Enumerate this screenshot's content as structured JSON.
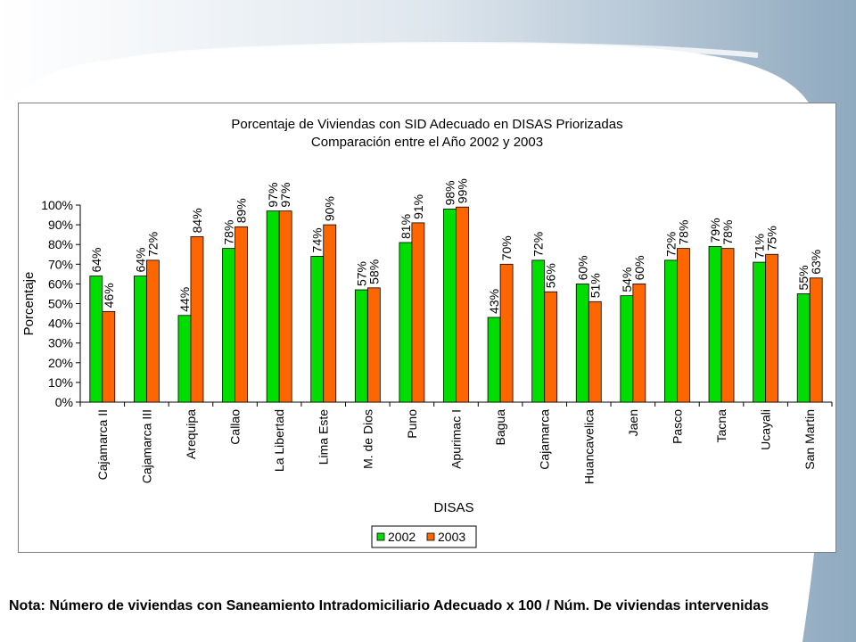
{
  "colors": {
    "series_2002": "#00dd00",
    "series_2003": "#ff6600",
    "background_band": "#9fb6c9"
  },
  "note": "Nota: Número de viviendas con Saneamiento Intradomiciliario Adecuado x 100 / Núm. De viviendas intervenidas",
  "chart_data": {
    "type": "bar",
    "title": "Porcentaje de Viviendas con SID Adecuado en DISAS Priorizadas",
    "subtitle": "Comparación entre el Año 2002 y  2003",
    "xlabel": "DISAS",
    "ylabel": "Porcentaje",
    "ylim": [
      0,
      100
    ],
    "yticks": [
      "0%",
      "10%",
      "20%",
      "30%",
      "40%",
      "50%",
      "60%",
      "70%",
      "80%",
      "90%",
      "100%"
    ],
    "grid": false,
    "legend_position": "bottom",
    "categories": [
      "Cajamarca II",
      "Cajamarca III",
      "Arequipa",
      "Callao",
      "La Libertad",
      "Lima Este",
      "M. de Dios",
      "Puno",
      "Apurimac I",
      "Bagua",
      "Cajamarca",
      "Huancavelica",
      "Jaen",
      "Pasco",
      "Tacna",
      "Ucayali",
      "San Martin"
    ],
    "series": [
      {
        "name": "2002",
        "values": [
          64,
          64,
          44,
          78,
          97,
          74,
          57,
          81,
          98,
          43,
          72,
          60,
          54,
          72,
          79,
          71,
          55
        ],
        "labels": [
          "64%",
          "64%",
          "44%",
          "78%",
          "97%",
          "74%",
          "57%",
          "81%",
          "98%",
          "43%",
          "72%",
          "60%",
          "54%",
          "72%",
          "79%",
          "71%",
          "55%"
        ]
      },
      {
        "name": "2003",
        "values": [
          46,
          72,
          84,
          89,
          97,
          90,
          58,
          91,
          99,
          70,
          56,
          51,
          60,
          78,
          78,
          75,
          63
        ],
        "labels": [
          "46%",
          "72%",
          "84%",
          "89%",
          "97%",
          "90%",
          "58%",
          "91%",
          "99%",
          "70%",
          "56%",
          "51%",
          "60%",
          "78%",
          "78%",
          "75%",
          "63%"
        ]
      }
    ]
  }
}
